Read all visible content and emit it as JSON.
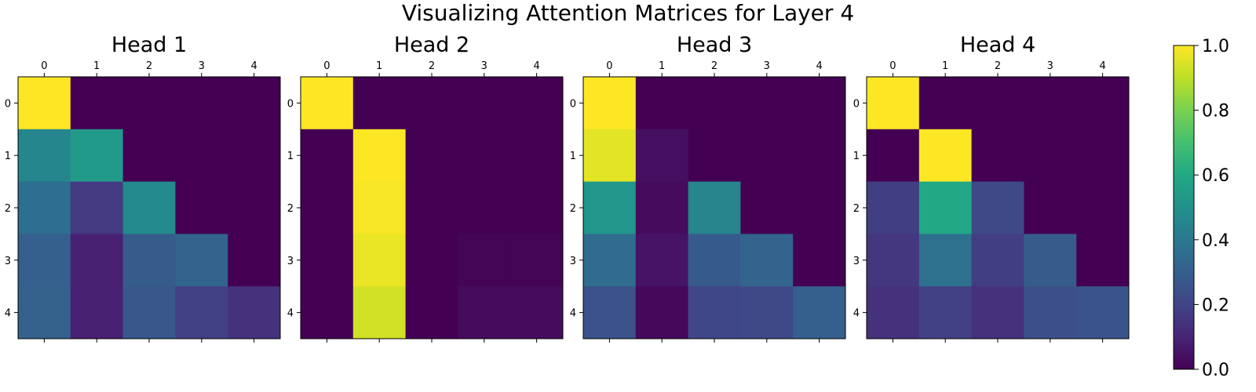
{
  "figure": {
    "title": "Visualizing Attention Matrices for Layer 4"
  },
  "chart_data": {
    "type": "heatmap",
    "colormap": "viridis",
    "x_ticks": [
      "0",
      "1",
      "2",
      "3",
      "4"
    ],
    "y_ticks": [
      "0",
      "1",
      "2",
      "3",
      "4"
    ],
    "x_tick_position": "top",
    "colorbar": {
      "range": [
        0,
        1
      ],
      "ticks": [
        "0.0",
        "0.2",
        "0.4",
        "0.6",
        "0.8",
        "1.0"
      ]
    },
    "heads": [
      {
        "title": "Head 1",
        "matrix": [
          [
            1.0,
            0.0,
            0.0,
            0.0,
            0.0
          ],
          [
            0.46,
            0.54,
            0.0,
            0.0,
            0.0
          ],
          [
            0.36,
            0.17,
            0.47,
            0.0,
            0.0
          ],
          [
            0.3,
            0.09,
            0.29,
            0.32,
            0.0
          ],
          [
            0.31,
            0.09,
            0.27,
            0.19,
            0.14
          ]
        ]
      },
      {
        "title": "Head 2",
        "matrix": [
          [
            1.0,
            0.0,
            0.0,
            0.0,
            0.0
          ],
          [
            0.0,
            1.0,
            0.0,
            0.0,
            0.0
          ],
          [
            0.0,
            0.99,
            0.0,
            0.0,
            0.0
          ],
          [
            0.0,
            0.97,
            0.0,
            0.01,
            0.01
          ],
          [
            0.0,
            0.93,
            0.0,
            0.03,
            0.03
          ]
        ]
      },
      {
        "title": "Head 3",
        "matrix": [
          [
            1.0,
            0.0,
            0.0,
            0.0,
            0.0
          ],
          [
            0.96,
            0.04,
            0.0,
            0.0,
            0.0
          ],
          [
            0.52,
            0.03,
            0.45,
            0.0,
            0.0
          ],
          [
            0.35,
            0.05,
            0.28,
            0.32,
            0.0
          ],
          [
            0.25,
            0.02,
            0.21,
            0.22,
            0.3
          ]
        ]
      },
      {
        "title": "Head 4",
        "matrix": [
          [
            1.0,
            0.0,
            0.0,
            0.0,
            0.0
          ],
          [
            0.0,
            1.0,
            0.0,
            0.0,
            0.0
          ],
          [
            0.18,
            0.6,
            0.22,
            0.0,
            0.0
          ],
          [
            0.16,
            0.37,
            0.18,
            0.29,
            0.0
          ],
          [
            0.14,
            0.19,
            0.14,
            0.24,
            0.26
          ]
        ]
      }
    ]
  }
}
